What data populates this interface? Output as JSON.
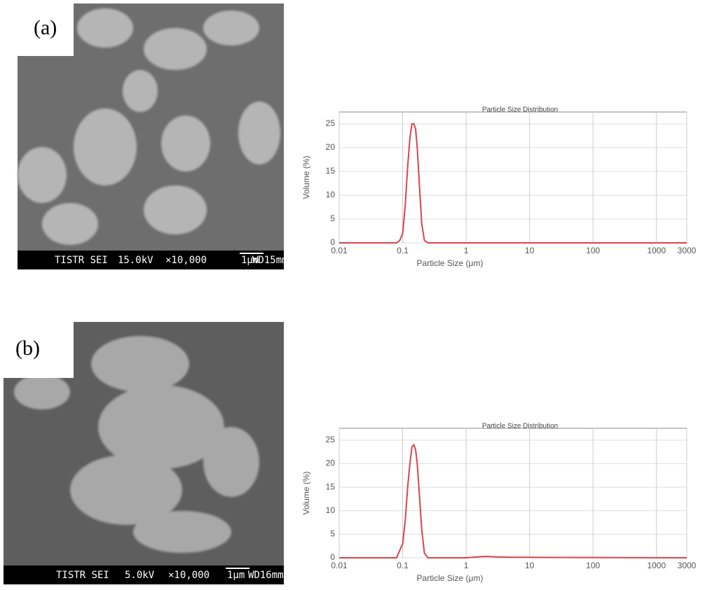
{
  "panels": [
    {
      "label": "(a)",
      "sem": [
        "TISTR SEI",
        "15.0kV",
        "×10,000",
        "1μm",
        "WD15mm"
      ]
    },
    {
      "label": "(b)",
      "sem": [
        "TISTR SEI",
        "5.0kV",
        "×10,000",
        "1μm",
        "WD16mm"
      ]
    }
  ],
  "chart_data": [
    {
      "type": "line",
      "title": "Particle Size Distribution",
      "x_label": "Particle Size (μm)",
      "y_label": "Volume (%)",
      "log_x": true,
      "grid": true,
      "xlim": [
        0.01,
        3000
      ],
      "ylim": [
        0,
        27.5
      ],
      "xticks": [
        0.01,
        0.1,
        1,
        10,
        100,
        1000,
        3000
      ],
      "yticks": [
        0,
        5,
        10,
        15,
        20,
        25
      ],
      "x": [
        0.01,
        0.08,
        0.09,
        0.1,
        0.11,
        0.12,
        0.13,
        0.14,
        0.15,
        0.16,
        0.17,
        0.18,
        0.2,
        0.22,
        0.25,
        1,
        10,
        100,
        3000
      ],
      "series": [
        {
          "color": "#d9434f",
          "values": [
            0,
            0,
            0.5,
            2,
            8,
            16,
            22,
            25,
            25,
            24,
            20,
            14,
            4,
            0.5,
            0,
            0,
            0,
            0,
            0
          ]
        }
      ]
    },
    {
      "type": "line",
      "title": "Particle Size Distribution",
      "x_label": "Particle Size (μm)",
      "y_label": "Volume (%)",
      "log_x": true,
      "grid": true,
      "xlim": [
        0.01,
        3000
      ],
      "ylim": [
        0,
        27.5
      ],
      "xticks": [
        0.01,
        0.1,
        1,
        10,
        100,
        1000,
        3000
      ],
      "yticks": [
        0,
        5,
        10,
        15,
        20,
        25
      ],
      "x": [
        0.01,
        0.08,
        0.1,
        0.11,
        0.12,
        0.13,
        0.14,
        0.15,
        0.16,
        0.17,
        0.18,
        0.2,
        0.22,
        0.25,
        1,
        1.5,
        2,
        3,
        5,
        10,
        3000
      ],
      "series": [
        {
          "color": "#d9434f",
          "values": [
            0,
            0,
            3,
            8,
            15,
            20,
            23.5,
            24,
            23,
            20,
            15,
            6,
            1,
            0,
            0,
            0.2,
            0.3,
            0.2,
            0.1,
            0.1,
            0
          ]
        }
      ]
    }
  ]
}
